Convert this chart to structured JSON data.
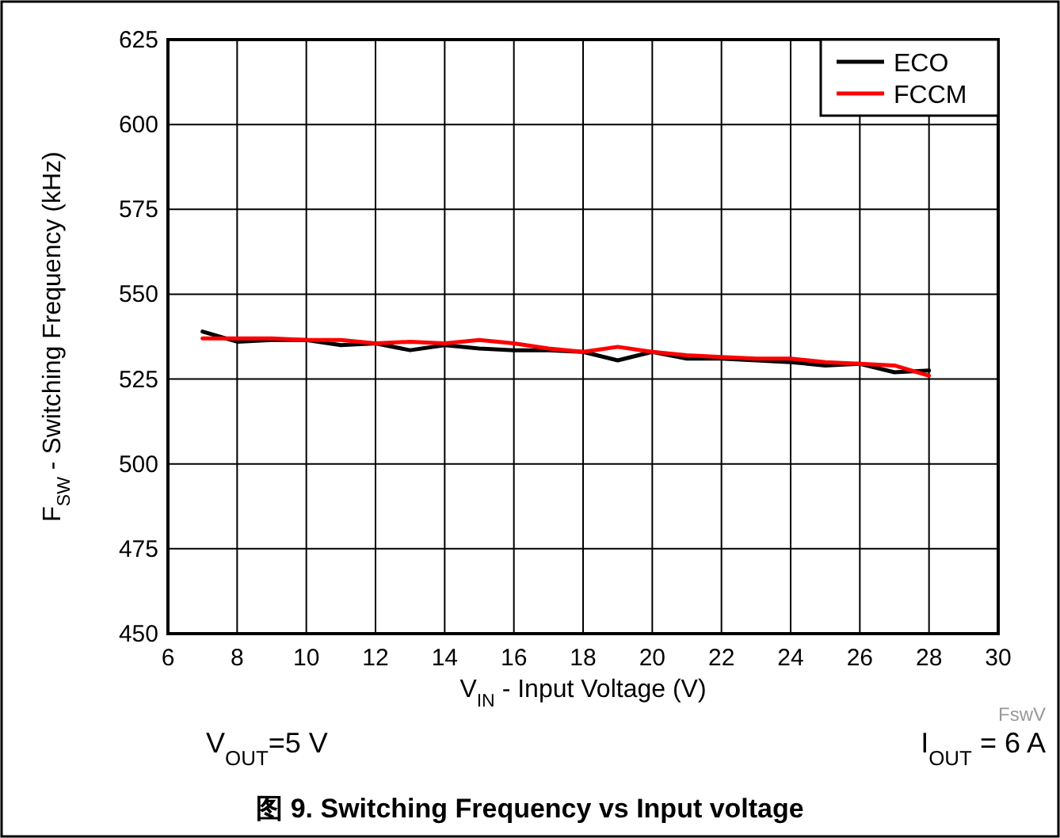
{
  "chart_data": {
    "type": "line",
    "title": "图 9. Switching Frequency vs Input voltage",
    "xlabel": "V$_{IN}$ - Input Voltage (V)",
    "ylabel": "F$_{SW}$ - Switching Frequency (kHz)",
    "annotations": [
      "FswV",
      "V$_{OUT}$=5 V",
      "I$_{OUT}$ = 6 A"
    ],
    "x": [
      7,
      8,
      9,
      10,
      11,
      12,
      13,
      14,
      15,
      16,
      17,
      18,
      19,
      20,
      21,
      22,
      23,
      24,
      25,
      26,
      27,
      28
    ],
    "series": [
      {
        "name": "ECO",
        "color": "#000000",
        "values": [
          539,
          536,
          536.5,
          536.5,
          535,
          535.5,
          533.5,
          535,
          534,
          533.5,
          533.5,
          533,
          530.5,
          533,
          531,
          531,
          530.5,
          530,
          529,
          529.5,
          527,
          527.5
        ]
      },
      {
        "name": "FCCM",
        "color": "#ff0000",
        "values": [
          537,
          537,
          537,
          536.5,
          536.5,
          535.5,
          536,
          535.5,
          536.5,
          535.5,
          534,
          533,
          534.5,
          533,
          532,
          531.5,
          531,
          531,
          530,
          529.5,
          529,
          526
        ]
      }
    ],
    "xlim": [
      6,
      30
    ],
    "ylim": [
      450,
      625
    ],
    "xticks": [
      6,
      8,
      10,
      12,
      14,
      16,
      18,
      20,
      22,
      24,
      26,
      28,
      30
    ],
    "yticks": [
      450,
      475,
      500,
      525,
      550,
      575,
      600,
      625
    ],
    "grid": true,
    "legend": "top right"
  }
}
